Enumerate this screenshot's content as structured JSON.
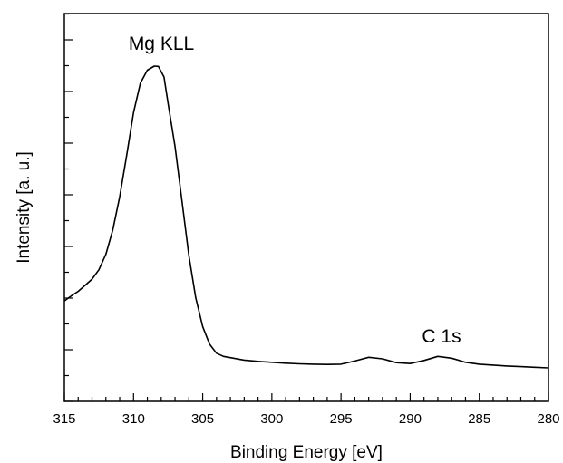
{
  "chart_data": {
    "type": "line",
    "xlabel": "Binding Energy [eV]",
    "ylabel": "Intensity [a. u.]",
    "xlim": [
      315,
      280
    ],
    "x_reversed": true,
    "y_tick_labels_shown": false,
    "x_ticks": [
      315,
      310,
      305,
      300,
      295,
      290,
      285,
      280
    ],
    "ylim": [
      0,
      1
    ],
    "grid": false,
    "legend": "none",
    "annotations": [
      {
        "text": "Mg KLL",
        "x": 308.2,
        "y": 1.0
      },
      {
        "text": "C 1s",
        "x": 288.0,
        "y": 0.1
      }
    ],
    "series": [
      {
        "x": [
          315.0,
          314.5,
          314.0,
          313.5,
          313.0,
          312.5,
          312.0,
          311.5,
          311.0,
          310.5,
          310.0,
          309.5,
          309.0,
          308.5,
          308.2,
          307.8,
          307.5,
          307.0,
          306.5,
          306.0,
          305.5,
          305.0,
          304.5,
          304.0,
          303.5,
          303.0,
          302.0,
          301.0,
          300.0,
          299.0,
          298.0,
          297.0,
          296.0,
          295.0,
          294.0,
          293.0,
          292.0,
          291.0,
          290.0,
          289.0,
          288.0,
          287.0,
          286.0,
          285.0,
          284.0,
          283.0,
          282.0,
          281.0,
          280.0
        ],
        "y": [
          0.246,
          0.262,
          0.277,
          0.296,
          0.316,
          0.346,
          0.396,
          0.474,
          0.58,
          0.713,
          0.851,
          0.946,
          0.987,
          1.0,
          0.999,
          0.965,
          0.88,
          0.741,
          0.567,
          0.392,
          0.256,
          0.163,
          0.107,
          0.078,
          0.068,
          0.064,
          0.056,
          0.052,
          0.049,
          0.046,
          0.044,
          0.043,
          0.042,
          0.043,
          0.053,
          0.065,
          0.06,
          0.048,
          0.045,
          0.055,
          0.068,
          0.062,
          0.049,
          0.043,
          0.04,
          0.037,
          0.035,
          0.033,
          0.031
        ]
      }
    ]
  }
}
